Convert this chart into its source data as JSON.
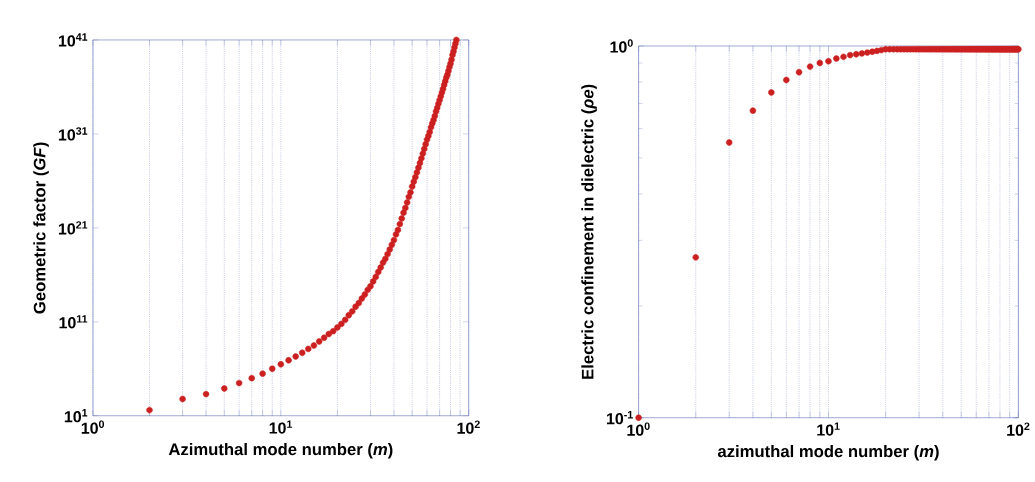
{
  "chart_data": [
    {
      "type": "scatter",
      "xlabel": "Azimuthal mode number (*m*)",
      "ylabel": "Geometric factor (*GF*)",
      "log": "xy",
      "grid": "x",
      "marker": "circle",
      "color": "#cc2020",
      "xlim": [
        1,
        100
      ],
      "ylim": [
        10,
        1e+41
      ],
      "xticks": [
        {
          "value": 1,
          "label": "10$^{0}$"
        },
        {
          "value": 2,
          "label": null
        },
        {
          "value": 3,
          "label": null
        },
        {
          "value": 4,
          "label": null
        },
        {
          "value": 5,
          "label": null
        },
        {
          "value": 6,
          "label": null
        },
        {
          "value": 7,
          "label": null
        },
        {
          "value": 8,
          "label": null
        },
        {
          "value": 9,
          "label": null
        },
        {
          "value": 10,
          "label": "10$^{1}$"
        },
        {
          "value": 20,
          "label": null
        },
        {
          "value": 30,
          "label": null
        },
        {
          "value": 40,
          "label": null
        },
        {
          "value": 50,
          "label": null
        },
        {
          "value": 60,
          "label": null
        },
        {
          "value": 70,
          "label": null
        },
        {
          "value": 80,
          "label": null
        },
        {
          "value": 90,
          "label": null
        },
        {
          "value": 100,
          "label": "10$^{2}$"
        }
      ],
      "yticks": [
        {
          "value": 10,
          "label": "10$^{1}$"
        },
        {
          "value": 100000000000.0,
          "label": "10$^{11}$"
        },
        {
          "value": 1e+21,
          "label": "10$^{21}$"
        },
        {
          "value": 1e+31,
          "label": "10$^{31}$"
        },
        {
          "value": 1e+41,
          "label": "10$^{41}$"
        }
      ],
      "x": [
        2,
        3,
        4,
        5,
        6,
        7,
        8,
        9,
        10,
        11,
        12,
        13,
        14,
        15,
        16,
        17,
        18,
        19,
        20,
        21,
        22,
        23,
        24,
        25,
        26,
        27,
        28,
        29,
        30,
        31,
        32,
        33,
        34,
        35,
        36,
        37,
        38,
        39,
        40,
        41,
        42,
        43,
        44,
        45,
        46,
        47,
        48,
        49,
        50,
        51,
        52,
        53,
        54,
        55,
        56,
        57,
        58,
        59,
        60,
        61,
        62,
        63,
        64,
        65,
        66,
        67,
        68,
        69,
        70,
        71,
        72,
        73,
        74,
        75,
        76,
        77,
        78,
        79,
        80,
        81,
        82,
        83,
        84,
        85,
        86
      ],
      "values": [
        40.0,
        600.0,
        2000.0,
        8000.0,
        30000.0,
        100000.0,
        300000.0,
        1000000.0,
        3000000.0,
        8000000.0,
        20000000.0,
        50000000.0,
        130000000.0,
        300000000.0,
        800000000.0,
        2000000000.0,
        5000000000.0,
        10000000000.0,
        25000000000.0,
        60000000000.0,
        160000000000.0,
        500000000000.0,
        1300000000000.0,
        4000000000000.0,
        10000000000000.0,
        30000000000000.0,
        80000000000000.0,
        250000000000000.0,
        600000000000000.0,
        2000000000000000.0,
        6000000000000000.0,
        2e+16,
        6e+16,
        2e+17,
        5e+17,
        1.6e+18,
        5e+18,
        1.6e+19,
        5e+19,
        2e+20,
        6e+20,
        2.5e+21,
        1e+22,
        4e+22,
        1.3e+23,
        5e+23,
        2e+24,
        6e+24,
        2.5e+25,
        8e+25,
        2.5e+26,
        8e+26,
        2.5e+27,
        8e+27,
        2.5e+28,
        8e+28,
        2.5e+29,
        8e+29,
        2.5e+30,
        6e+30,
        1.6e+31,
        5e+31,
        1.3e+32,
        3e+32,
        8e+32,
        2.5e+33,
        6e+33,
        1.6e+34,
        4e+34,
        1e+35,
        2.5e+35,
        6e+35,
        1.6e+36,
        4e+36,
        1e+37,
        2e+37,
        5e+37,
        1.3e+38,
        3e+38,
        8e+38,
        2.5e+39,
        6e+39,
        1.6e+40,
        4e+40,
        1e+41
      ]
    },
    {
      "type": "scatter",
      "xlabel": "azimuthal mode number (*m*)",
      "ylabel": "Electric confinement in dielectric (*ρe*)",
      "log": "xy",
      "grid": "x",
      "marker": "circle",
      "color": "#cc2020",
      "xlim": [
        1,
        100
      ],
      "ylim": [
        0.1,
        1
      ],
      "xticks": [
        {
          "value": 1,
          "label": "10$^{0}$"
        },
        {
          "value": 2,
          "label": null
        },
        {
          "value": 3,
          "label": null
        },
        {
          "value": 4,
          "label": null
        },
        {
          "value": 5,
          "label": null
        },
        {
          "value": 6,
          "label": null
        },
        {
          "value": 7,
          "label": null
        },
        {
          "value": 8,
          "label": null
        },
        {
          "value": 9,
          "label": null
        },
        {
          "value": 10,
          "label": "10$^{1}$"
        },
        {
          "value": 20,
          "label": null
        },
        {
          "value": 30,
          "label": null
        },
        {
          "value": 40,
          "label": null
        },
        {
          "value": 50,
          "label": null
        },
        {
          "value": 60,
          "label": null
        },
        {
          "value": 70,
          "label": null
        },
        {
          "value": 80,
          "label": null
        },
        {
          "value": 90,
          "label": null
        },
        {
          "value": 100,
          "label": "10$^{2}$"
        }
      ],
      "yticks": [
        {
          "value": 0.1,
          "label": "10$^{-1}$"
        },
        {
          "value": 1,
          "label": "10$^{0}$"
        }
      ],
      "x": [
        1,
        2,
        3,
        4,
        5,
        6,
        7,
        8,
        9,
        10,
        11,
        12,
        13,
        14,
        15,
        16,
        17,
        18,
        19,
        20,
        21,
        22,
        23,
        24,
        25,
        26,
        27,
        28,
        29,
        30,
        31,
        32,
        33,
        34,
        35,
        36,
        37,
        38,
        39,
        40,
        41,
        42,
        43,
        44,
        45,
        46,
        47,
        48,
        49,
        50,
        51,
        52,
        53,
        54,
        55,
        56,
        57,
        58,
        59,
        60,
        61,
        62,
        63,
        64,
        65,
        66,
        67,
        68,
        69,
        70,
        71,
        72,
        73,
        74,
        75,
        76,
        77,
        78,
        79,
        80,
        81,
        82,
        83,
        84,
        85,
        86,
        87,
        88,
        89,
        90,
        91,
        92,
        93,
        94,
        95,
        96,
        97,
        98,
        99,
        100
      ],
      "values": [
        0.1,
        0.27,
        0.55,
        0.67,
        0.75,
        0.81,
        0.85,
        0.88,
        0.9,
        0.91,
        0.925,
        0.935,
        0.945,
        0.95,
        0.955,
        0.96,
        0.965,
        0.97,
        0.975,
        0.98,
        0.98,
        0.98,
        0.98,
        0.98,
        0.98,
        0.98,
        0.98,
        0.98,
        0.98,
        0.98,
        0.98,
        0.98,
        0.98,
        0.98,
        0.98,
        0.98,
        0.98,
        0.98,
        0.98,
        0.98,
        0.98,
        0.98,
        0.98,
        0.98,
        0.98,
        0.98,
        0.98,
        0.98,
        0.98,
        0.98,
        0.98,
        0.98,
        0.98,
        0.98,
        0.98,
        0.98,
        0.98,
        0.98,
        0.98,
        0.98,
        0.98,
        0.98,
        0.98,
        0.98,
        0.98,
        0.98,
        0.98,
        0.98,
        0.98,
        0.98,
        0.98,
        0.98,
        0.98,
        0.98,
        0.98,
        0.98,
        0.98,
        0.98,
        0.98,
        0.98,
        0.98,
        0.98,
        0.98,
        0.98,
        0.98,
        0.98,
        0.98,
        0.98,
        0.98,
        0.98,
        0.98,
        0.98,
        0.98,
        0.98,
        0.98,
        0.98,
        0.98,
        0.98,
        0.98,
        0.98
      ]
    }
  ]
}
